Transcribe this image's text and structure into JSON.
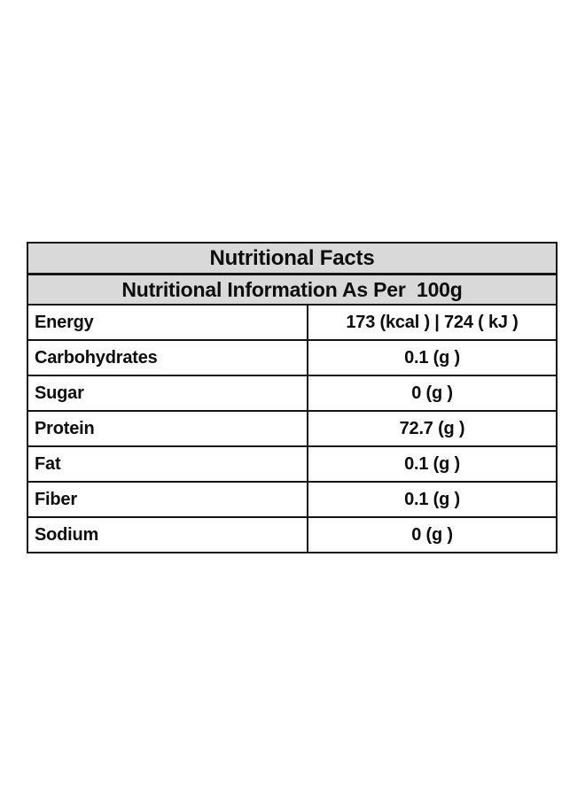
{
  "table": {
    "title": "Nutritional Facts",
    "subtitle": "Nutritional Information As Per  100g",
    "rows": [
      {
        "label": "Energy",
        "value": "173 (kcal ) | 724 ( kJ )"
      },
      {
        "label": "Carbohydrates",
        "value": "0.1 (g )"
      },
      {
        "label": "Sugar",
        "value": "0 (g )"
      },
      {
        "label": "Protein",
        "value": "72.7 (g )"
      },
      {
        "label": "Fat",
        "value": "0.1 (g )"
      },
      {
        "label": "Fiber",
        "value": "0.1 (g )"
      },
      {
        "label": "Sodium",
        "value": "0 (g )"
      }
    ]
  }
}
